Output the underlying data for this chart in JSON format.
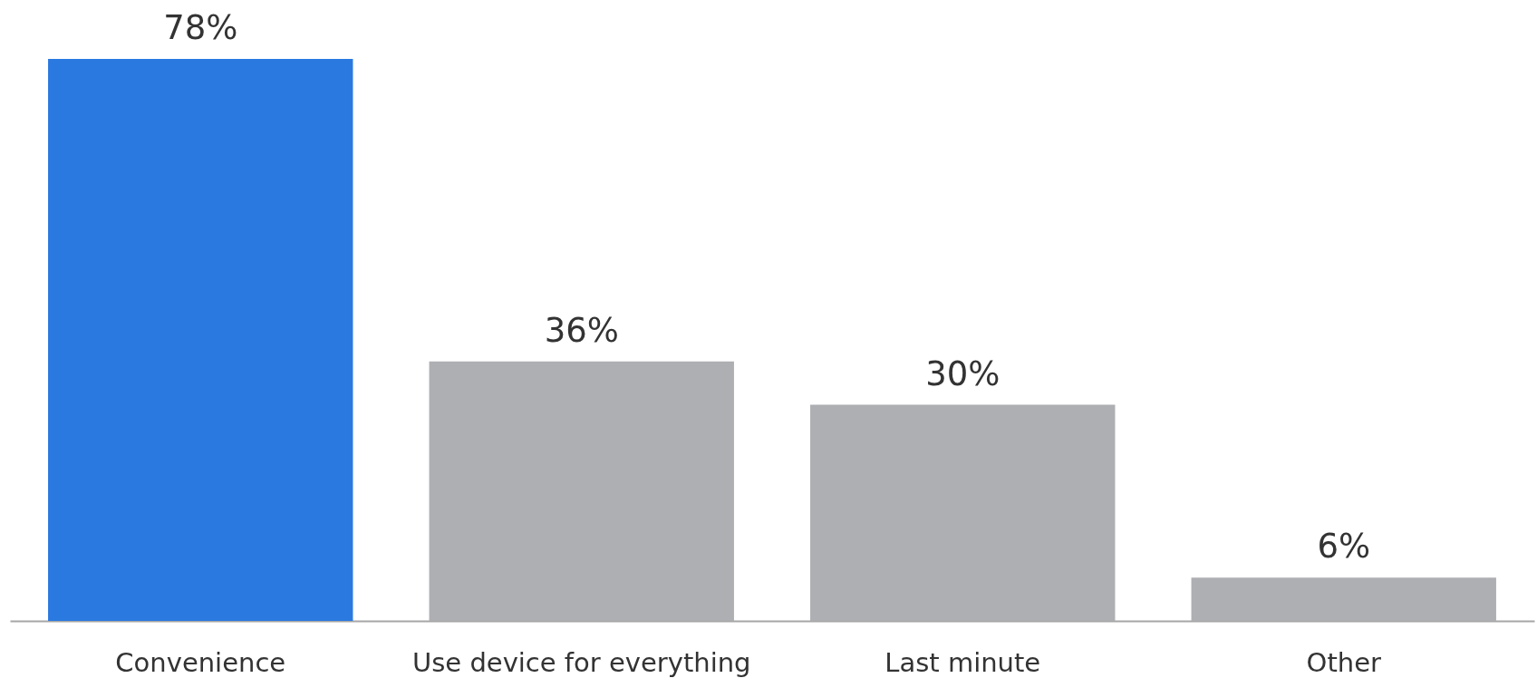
{
  "chart_data": {
    "type": "bar",
    "categories": [
      "Convenience",
      "Use device for everything",
      "Last minute",
      "Other"
    ],
    "values": [
      78,
      36,
      30,
      6
    ],
    "value_labels": [
      "78%",
      "36%",
      "30%",
      "6%"
    ],
    "colors": [
      "#2a79e0",
      "#aeafb3",
      "#aeafb3",
      "#aeafb3"
    ],
    "tick_labels": "x",
    "grid": false
  }
}
